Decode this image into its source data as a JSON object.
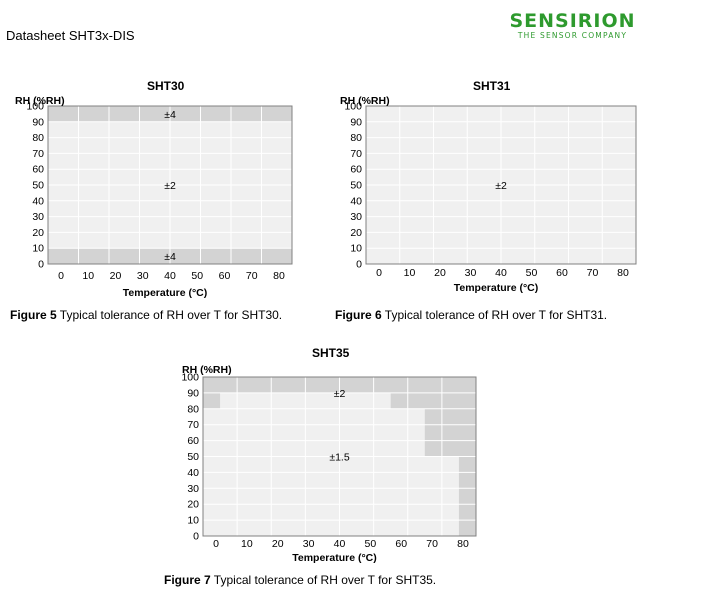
{
  "header": {
    "doc_title": "Datasheet SHT3x-DIS",
    "logo_main": "SENSIRION",
    "logo_sub": "THE SENSOR COMPANY",
    "brand_color": "#2e9a2e"
  },
  "colors": {
    "high_tolerance": "#d3d3d3",
    "low_tolerance": "#f0f0f0",
    "grid": "#ffffff",
    "border": "#808080"
  },
  "figures": [
    {
      "caption_bold": "Figure 5",
      "caption_text": " Typical tolerance of RH over T for SHT30."
    },
    {
      "caption_bold": "Figure 6",
      "caption_text": " Typical tolerance of RH over T for SHT31."
    },
    {
      "caption_bold": "Figure 7",
      "caption_text": " Typical tolerance of RH over T for SHT35."
    }
  ],
  "chart_data": [
    {
      "type": "heatmap",
      "title": "SHT30",
      "xlabel": "Temperature (°C)",
      "ylabel": "RH (%RH)",
      "x_ticks": [
        "0",
        "10",
        "20",
        "30",
        "40",
        "50",
        "60",
        "70",
        "80"
      ],
      "y_ticks": [
        "100",
        "90",
        "80",
        "70",
        "60",
        "50",
        "40",
        "30",
        "20",
        "10",
        "0"
      ],
      "xlim": [
        0,
        80
      ],
      "ylim": [
        0,
        100
      ],
      "regions": [
        {
          "x": [
            0,
            80
          ],
          "y": [
            90,
            100
          ],
          "level": "high"
        },
        {
          "x": [
            0,
            80
          ],
          "y": [
            10,
            90
          ],
          "level": "low"
        },
        {
          "x": [
            0,
            80
          ],
          "y": [
            0,
            10
          ],
          "level": "high"
        }
      ],
      "labels": [
        {
          "text": "±4",
          "x": 40,
          "y": 95
        },
        {
          "text": "±2",
          "x": 40,
          "y": 50
        },
        {
          "text": "±4",
          "x": 40,
          "y": 5
        }
      ]
    },
    {
      "type": "heatmap",
      "title": "SHT31",
      "xlabel": "Temperature (°C)",
      "ylabel": "RH (%RH)",
      "x_ticks": [
        "0",
        "10",
        "20",
        "30",
        "40",
        "50",
        "60",
        "70",
        "80"
      ],
      "y_ticks": [
        "100",
        "90",
        "80",
        "70",
        "60",
        "50",
        "40",
        "30",
        "20",
        "10",
        "0"
      ],
      "xlim": [
        0,
        80
      ],
      "ylim": [
        0,
        100
      ],
      "regions": [
        {
          "x": [
            0,
            80
          ],
          "y": [
            0,
            100
          ],
          "level": "low"
        }
      ],
      "labels": [
        {
          "text": "±2",
          "x": 40,
          "y": 50
        }
      ]
    },
    {
      "type": "heatmap",
      "title": "SHT35",
      "xlabel": "Temperature (°C)",
      "ylabel": "RH (%RH)",
      "x_ticks": [
        "0",
        "10",
        "20",
        "30",
        "40",
        "50",
        "60",
        "70",
        "80"
      ],
      "y_ticks": [
        "100",
        "90",
        "80",
        "70",
        "60",
        "50",
        "40",
        "30",
        "20",
        "10",
        "0"
      ],
      "xlim": [
        0,
        80
      ],
      "ylim": [
        0,
        100
      ],
      "regions": [
        {
          "x": [
            0,
            80
          ],
          "y": [
            0,
            100
          ],
          "level": "low"
        },
        {
          "x": [
            0,
            80
          ],
          "y": [
            90,
            100
          ],
          "level": "high"
        },
        {
          "x": [
            0,
            5
          ],
          "y": [
            80,
            90
          ],
          "level": "high"
        },
        {
          "x": [
            55,
            80
          ],
          "y": [
            80,
            90
          ],
          "level": "high"
        },
        {
          "x": [
            65,
            80
          ],
          "y": [
            50,
            80
          ],
          "level": "high"
        },
        {
          "x": [
            75,
            80
          ],
          "y": [
            0,
            50
          ],
          "level": "high"
        }
      ],
      "labels": [
        {
          "text": "±2",
          "x": 40,
          "y": 90
        },
        {
          "text": "±1.5",
          "x": 40,
          "y": 50
        }
      ]
    }
  ]
}
